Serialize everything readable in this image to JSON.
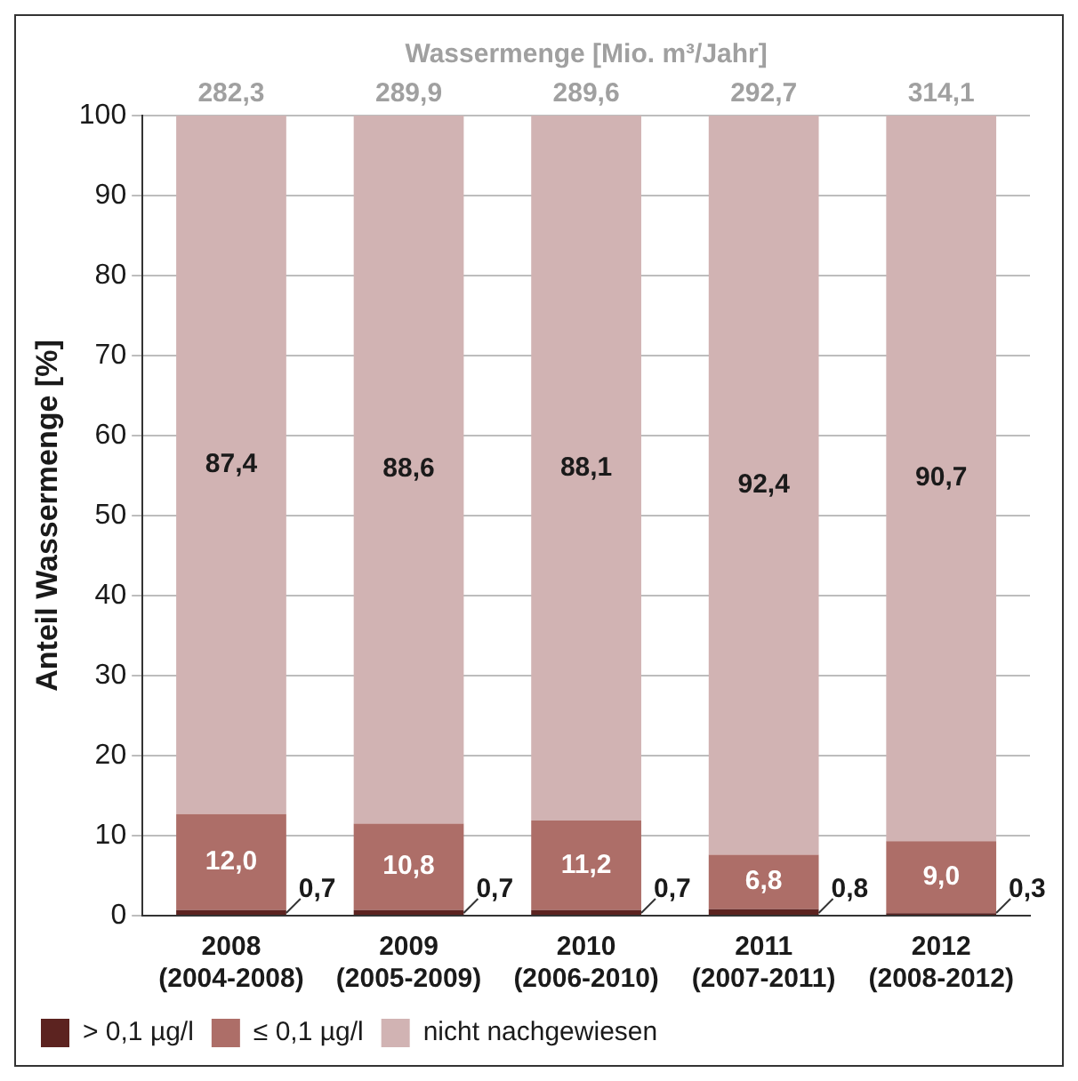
{
  "chart_data": {
    "type": "bar",
    "stacked": true,
    "x2label": "Wassermenge [Mio. m³/Jahr]",
    "ylabel": "Anteil Wassermenge [%]",
    "categories": [
      "2008\n(2004-2008)",
      "2009\n(2005-2009)",
      "2010\n(2006-2010)",
      "2011\n(2007-2011)",
      "2012\n(2008-2012)"
    ],
    "series": [
      {
        "name": "> 0,1 µg/l",
        "color": "#5c2320",
        "values": [
          0.7,
          0.7,
          0.7,
          0.8,
          0.3
        ],
        "value_labels": [
          "0,7",
          "0,7",
          "0,7",
          "0,8",
          "0,3"
        ]
      },
      {
        "name": "≤ 0,1 µg/l",
        "color": "#ad6e68",
        "values": [
          12.0,
          10.8,
          11.2,
          6.8,
          9.0
        ],
        "value_labels": [
          "12,0",
          "10,8",
          "11,2",
          "6,8",
          "9,0"
        ]
      },
      {
        "name": "nicht nachgewiesen",
        "color": "#d1b3b3",
        "values": [
          87.4,
          88.6,
          88.1,
          92.4,
          90.7
        ],
        "value_labels": [
          "87,4",
          "88,6",
          "88,1",
          "92,4",
          "90,7"
        ]
      }
    ],
    "annotations": [
      "282,3",
      "289,9",
      "289,6",
      "292,7",
      "314,1"
    ],
    "ylim": [
      0,
      100
    ],
    "yticks": [
      0,
      10,
      20,
      30,
      40,
      50,
      60,
      70,
      80,
      90,
      100
    ],
    "grid": "y",
    "legend": "bottom"
  }
}
